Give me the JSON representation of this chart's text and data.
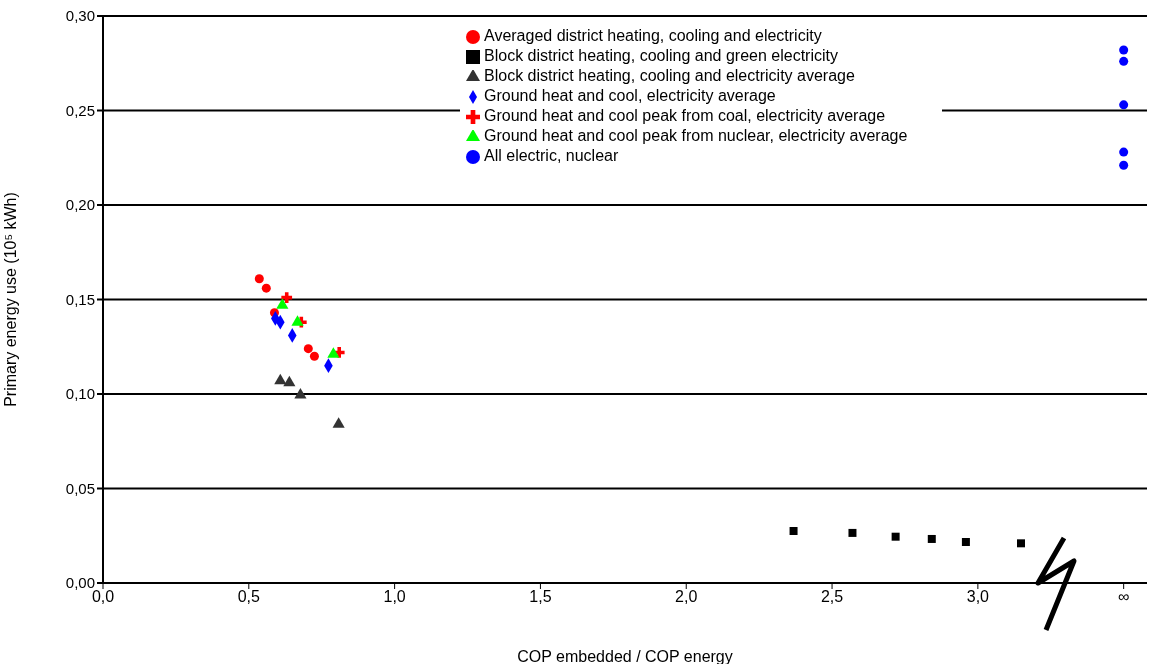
{
  "chart_data": {
    "type": "scatter",
    "xlabel": "COP embedded / COP energy",
    "ylabel": "Primary energy use (10⁵ kWh)",
    "xlim": [
      0,
      3.58
    ],
    "xticks": [
      {
        "value": 0,
        "label": "0,0"
      },
      {
        "value": 0.5,
        "label": "0,5"
      },
      {
        "value": 1,
        "label": "1,0"
      },
      {
        "value": 1.5,
        "label": "1,5"
      },
      {
        "value": 2,
        "label": "2,0"
      },
      {
        "value": 2.5,
        "label": "2,5"
      },
      {
        "value": 3,
        "label": "3,0"
      },
      {
        "value": 3.5,
        "label": "∞"
      }
    ],
    "ylim": [
      0,
      0.3
    ],
    "yticks": [
      {
        "value": 0,
        "label": "0,00"
      },
      {
        "value": 0.05,
        "label": "0,05"
      },
      {
        "value": 0.1,
        "label": "0,10"
      },
      {
        "value": 0.15,
        "label": "0,15"
      },
      {
        "value": 0.2,
        "label": "0,20"
      },
      {
        "value": 0.25,
        "label": "0,25"
      },
      {
        "value": 0.3,
        "label": "0,30"
      }
    ],
    "grid": "y",
    "legend": "top",
    "series": [
      {
        "name": "Averaged district heating, cooling and electricity",
        "color": "#ff0000",
        "marker": "circle",
        "x": [
          0.536,
          0.56,
          0.588,
          0.704,
          0.725
        ],
        "values": [
          0.161,
          0.156,
          0.143,
          0.124,
          0.12
        ]
      },
      {
        "name": "Block district heating, cooling and green electricity",
        "color": "#000000",
        "marker": "square",
        "x": [
          2.368,
          2.57,
          2.718,
          2.842,
          2.959,
          3.148
        ],
        "values": [
          0.0275,
          0.0265,
          0.0245,
          0.0233,
          0.0217,
          0.021
        ]
      },
      {
        "name": "Block district heating, cooling and electricity average",
        "color": "#333333",
        "marker": "triangle",
        "x": [
          0.608,
          0.639,
          0.677,
          0.808
        ],
        "values": [
          0.107,
          0.106,
          0.0995,
          0.084
        ]
      },
      {
        "name": "Ground heat and cool, electricity average",
        "color": "#0000ff",
        "marker": "diamond",
        "x": [
          0.591,
          0.608,
          0.649,
          0.773
        ],
        "values": [
          0.14,
          0.138,
          0.131,
          0.115
        ]
      },
      {
        "name": "Ground heat and cool peak from coal, electricity average",
        "color": "#ff0000",
        "marker": "cross",
        "x": [
          0.63,
          0.68,
          0.81
        ],
        "values": [
          0.151,
          0.138,
          0.122
        ]
      },
      {
        "name": "Ground heat and cool peak from nuclear, electricity average",
        "color": "#00ff00",
        "marker": "triangle",
        "x": [
          0.615,
          0.667,
          0.79
        ],
        "values": [
          0.147,
          0.138,
          0.121
        ]
      },
      {
        "name": "All electric, nuclear",
        "color": "#0000ff",
        "marker": "circle",
        "x": [
          3.5,
          3.5,
          3.5,
          3.5,
          3.5
        ],
        "values": [
          0.282,
          0.276,
          0.253,
          0.228,
          0.221
        ]
      }
    ]
  }
}
